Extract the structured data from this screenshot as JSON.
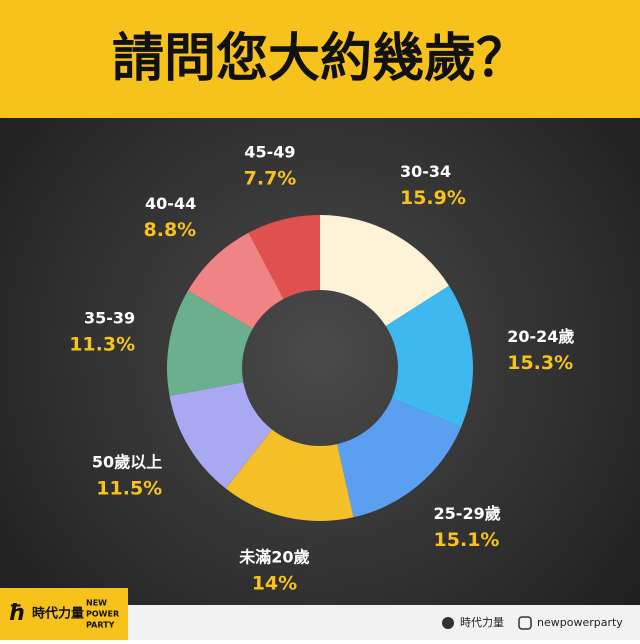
{
  "chart_data": {
    "type": "donut",
    "title": "請問您大約幾歲？",
    "categories": [
      "30-34",
      "20-24歲",
      "25-29歲",
      "未滿20歲",
      "50歲以上",
      "35-39",
      "40-44",
      "45-49"
    ],
    "values": [
      15.9,
      15.3,
      15.1,
      14,
      11.5,
      11.3,
      8.8,
      7.7
    ],
    "value_labels": [
      "15.9%",
      "15.3%",
      "15.1%",
      "14%",
      "11.5%",
      "11.3%",
      "8.8%",
      "7.7%"
    ],
    "colors": [
      "#fdf3d7",
      "#3fb8f0",
      "#5b9ff0",
      "#f5c027",
      "#a9a9f2",
      "#6bb08c",
      "#f08383",
      "#e0504e"
    ]
  },
  "footer": {
    "logo_cn": "時代力量",
    "logo_en": [
      "NEW",
      "POWER",
      "PARTY"
    ],
    "facebook": "時代力量",
    "instagram": "newpowerparty"
  }
}
